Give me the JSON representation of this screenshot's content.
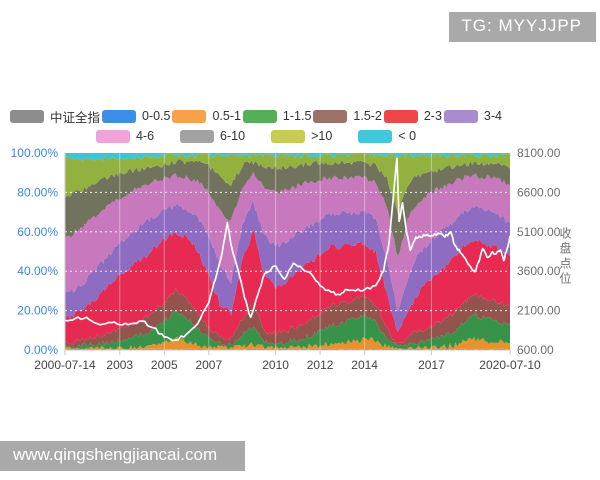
{
  "overlays": {
    "tg_watermark": "TG: MYYJJPP",
    "site_watermark": "www.qingshengjiancai.com"
  },
  "legend": {
    "items": [
      {
        "label": "中证全指",
        "color": "#8C8C8C"
      },
      {
        "label": "0-0.5",
        "color": "#3D8EE8"
      },
      {
        "label": "0.5-1",
        "color": "#F5A14D"
      },
      {
        "label": "1-1.5",
        "color": "#55B055"
      },
      {
        "label": "1.5-2",
        "color": "#9D7068"
      },
      {
        "label": "2-3",
        "color": "#EE4545"
      },
      {
        "label": "3-4",
        "color": "#A98BD0"
      },
      {
        "label": "4-6",
        "color": "#F0A3D8"
      },
      {
        "label": "6-10",
        "color": "#A2A2A2"
      },
      {
        "label": ">10",
        "color": "#C8CC55"
      },
      {
        "label": "< 0",
        "color": "#3FC8DC"
      }
    ]
  },
  "chart_data": {
    "type": "area",
    "stacked": true,
    "title": "",
    "x_domain": [
      2000.54,
      2020.53
    ],
    "x_ticks": [
      {
        "label": "2000-07-14",
        "t": 2000.54
      },
      {
        "label": "2003",
        "t": 2003
      },
      {
        "label": "2005",
        "t": 2005
      },
      {
        "label": "2007",
        "t": 2007
      },
      {
        "label": "2010",
        "t": 2010
      },
      {
        "label": "2012",
        "t": 2012
      },
      {
        "label": "2014",
        "t": 2014
      },
      {
        "label": "2017",
        "t": 2017
      },
      {
        "label": "2020-07-10",
        "t": 2020.53
      }
    ],
    "y_left": {
      "min": 0,
      "max": 100,
      "ticks": [
        {
          "label": "100.00%",
          "v": 100
        },
        {
          "label": "80.00%",
          "v": 80
        },
        {
          "label": "60.00%",
          "v": 60
        },
        {
          "label": "40.00%",
          "v": 40
        },
        {
          "label": "20.00%",
          "v": 20
        },
        {
          "label": "0.00%",
          "v": 0
        }
      ],
      "gridlines": [
        20,
        40,
        60,
        80
      ],
      "label_color": "#3C87E0"
    },
    "y_right": {
      "min": 600,
      "max": 8100,
      "label": "收盘点位",
      "ticks": [
        {
          "label": "8100.00",
          "v": 8100
        },
        {
          "label": "6600.00",
          "v": 6600
        },
        {
          "label": "5100.00",
          "v": 5100
        },
        {
          "label": "3600.00",
          "v": 3600
        },
        {
          "label": "2100.00",
          "v": 2100
        },
        {
          "label": "600.00",
          "v": 600
        }
      ],
      "label_color": "#6E6E6E"
    },
    "x": [
      2000.54,
      2001,
      2001.5,
      2002,
      2002.5,
      2003,
      2003.5,
      2004,
      2004.5,
      2005,
      2005.5,
      2006,
      2006.5,
      2007,
      2007.5,
      2008,
      2008.5,
      2009,
      2009.5,
      2010,
      2010.5,
      2011,
      2011.5,
      2012,
      2012.5,
      2013,
      2013.5,
      2014,
      2014.5,
      2015,
      2015.5,
      2016,
      2016.5,
      2017,
      2017.5,
      2018,
      2018.5,
      2019,
      2019.5,
      2020,
      2020.53
    ],
    "series": [
      {
        "name": "0-0.5",
        "color": "#3E8ED8",
        "values": [
          0.5,
          0.5,
          0.5,
          0.5,
          0.5,
          0.5,
          0.5,
          0.5,
          0.5,
          0.5,
          0.5,
          0.5,
          0.5,
          0.5,
          0.5,
          0.5,
          0.5,
          0.5,
          0.5,
          0.5,
          0.5,
          0.5,
          0.5,
          0.5,
          0.5,
          0.5,
          0.5,
          0.5,
          0.5,
          0.5,
          0.5,
          0.5,
          0.5,
          0.5,
          0.5,
          0.5,
          0.5,
          0.5,
          0.5,
          0.5,
          0.5
        ]
      },
      {
        "name": "0.5-1",
        "color": "#E8922E",
        "values": [
          0,
          0,
          0,
          0,
          0,
          0.5,
          0.5,
          1,
          1.5,
          3,
          5,
          4,
          2,
          1,
          0.5,
          0.5,
          1,
          2.5,
          0.5,
          0.5,
          0.5,
          1,
          1.5,
          2,
          3,
          3,
          4,
          5,
          4,
          1,
          0,
          0.5,
          0.5,
          0.5,
          1,
          2,
          4,
          5,
          4,
          4,
          3
        ]
      },
      {
        "name": "1-1.5",
        "color": "#37934A",
        "values": [
          1,
          1,
          2,
          2.5,
          3,
          4,
          5,
          6,
          8,
          11,
          14,
          12,
          8,
          4,
          2,
          2,
          6,
          9,
          3,
          2,
          3,
          4,
          5,
          7,
          9,
          10,
          11,
          12,
          10,
          4,
          1,
          2,
          3,
          4,
          5,
          7,
          10,
          12,
          11,
          10,
          9
        ]
      },
      {
        "name": "1.5-2",
        "color": "#94544E",
        "values": [
          2,
          2.5,
          3,
          4,
          5,
          6,
          7,
          8,
          9,
          10,
          10.5,
          10,
          9,
          6,
          3.5,
          3,
          8,
          11.5,
          6,
          5,
          6,
          7,
          8,
          9,
          10,
          10,
          10,
          10,
          9,
          5,
          1,
          4,
          6,
          7,
          8,
          9,
          10,
          11,
          10,
          10,
          9
        ]
      },
      {
        "name": "2-3",
        "color": "#E62A52",
        "values": [
          12.5,
          14,
          16,
          20,
          24,
          27,
          29,
          31,
          32,
          31.5,
          30,
          31,
          31,
          26,
          17,
          12,
          30,
          37,
          28,
          24,
          25,
          27,
          29,
          30,
          30,
          29,
          28,
          27,
          26,
          18,
          6,
          14,
          20,
          24,
          26,
          28,
          29,
          28,
          28,
          27,
          26
        ]
      },
      {
        "name": "3-4",
        "color": "#8E6CC2",
        "values": [
          12,
          13,
          14,
          15,
          16,
          16.5,
          17.5,
          17.5,
          16.5,
          15,
          13.5,
          14.5,
          17,
          20,
          20,
          17,
          17,
          14.5,
          20,
          21,
          20,
          20,
          19,
          18,
          17,
          17,
          16,
          16,
          17,
          18,
          10,
          18,
          20,
          20,
          20,
          19,
          17,
          16,
          17,
          17,
          17
        ]
      },
      {
        "name": "4-6",
        "color": "#C878BC",
        "values": [
          28,
          29,
          29,
          27,
          25,
          23,
          21,
          19,
          17.5,
          16,
          15,
          15.5,
          18,
          23,
          28,
          30,
          20,
          14,
          24,
          27,
          26,
          24,
          22,
          20,
          18,
          18,
          18,
          17,
          19,
          26,
          28,
          30,
          26,
          24,
          22,
          20,
          17,
          16,
          17,
          18,
          19
        ]
      },
      {
        "name": "6-10",
        "color": "#71735C",
        "values": [
          21,
          19.5,
          18,
          16,
          14,
          12,
          10.5,
          9,
          8,
          7,
          7,
          8,
          9.5,
          12.5,
          16.5,
          19,
          11,
          6.5,
          11,
          12.5,
          12,
          10.5,
          9.5,
          8.5,
          7.5,
          7.5,
          7.5,
          7.5,
          8.5,
          14.5,
          23.5,
          16.5,
          12.5,
          10.5,
          9,
          8,
          7,
          6.5,
          7,
          7.5,
          8.5
        ]
      },
      {
        "name": ">10",
        "color": "#93B13F",
        "values": [
          20,
          17.5,
          14.5,
          12,
          10,
          8,
          6.5,
          5.5,
          5,
          4.5,
          3.5,
          3.5,
          4,
          6,
          11,
          15,
          5.5,
          3.5,
          6,
          6.5,
          6,
          5,
          4.5,
          4,
          4,
          4,
          4,
          4,
          5,
          12,
          29,
          13.5,
          10.5,
          8.5,
          7.5,
          5.5,
          4.5,
          4,
          4.5,
          5,
          7
        ]
      },
      {
        "name": "< 0",
        "color": "#3EC4D4",
        "values": [
          3,
          3,
          3,
          3,
          2.5,
          2.5,
          2.5,
          2.5,
          2,
          1.5,
          1,
          1,
          1,
          1,
          1,
          1,
          1,
          1,
          1,
          1,
          1,
          1,
          1,
          1,
          1,
          1,
          1,
          1,
          1,
          1,
          1,
          1,
          1,
          1,
          1,
          1,
          1,
          1,
          1,
          1,
          1
        ]
      }
    ],
    "line_overlay": {
      "name": "中证全指",
      "color": "#FFFFFF",
      "axis": "right",
      "x": [
        2000.54,
        2001,
        2001.5,
        2002,
        2002.5,
        2003,
        2003.5,
        2004,
        2004.5,
        2005,
        2005.5,
        2006,
        2006.5,
        2007,
        2007.3,
        2007.6,
        2007.83,
        2008,
        2008.3,
        2008.6,
        2008.88,
        2009.2,
        2009.5,
        2010,
        2010.4,
        2010.8,
        2011.2,
        2011.6,
        2012,
        2012.5,
        2012.9,
        2013.2,
        2013.6,
        2014,
        2014.5,
        2014.85,
        2015.1,
        2015.45,
        2015.55,
        2015.7,
        2015.9,
        2016.05,
        2016.3,
        2016.5,
        2016.8,
        2017,
        2017.3,
        2017.6,
        2017.85,
        2018.05,
        2018.3,
        2018.6,
        2018.9,
        2019,
        2019.3,
        2019.5,
        2019.7,
        2019.9,
        2020.1,
        2020.25,
        2020.4,
        2020.53
      ],
      "values": [
        1725,
        1800,
        1850,
        1600,
        1650,
        1560,
        1600,
        1700,
        1450,
        1100,
        975,
        1200,
        1600,
        2400,
        3300,
        4300,
        5450,
        4600,
        3700,
        2600,
        1850,
        2700,
        3500,
        3800,
        3300,
        3900,
        3700,
        3500,
        3050,
        2800,
        2700,
        2900,
        2850,
        2900,
        3050,
        3600,
        4700,
        7900,
        5500,
        6200,
        5000,
        4400,
        4900,
        4900,
        5000,
        4950,
        5050,
        4900,
        5100,
        4600,
        4300,
        3950,
        3600,
        3650,
        4460,
        4125,
        4300,
        4250,
        4400,
        4000,
        4460,
        4950
      ]
    },
    "grid": {
      "h_color": "rgba(255,255,255,0.9)",
      "v_color": "rgba(255,255,255,0.4)",
      "axis_color": "#C9C9C9",
      "x_label_color": "#444444"
    }
  }
}
